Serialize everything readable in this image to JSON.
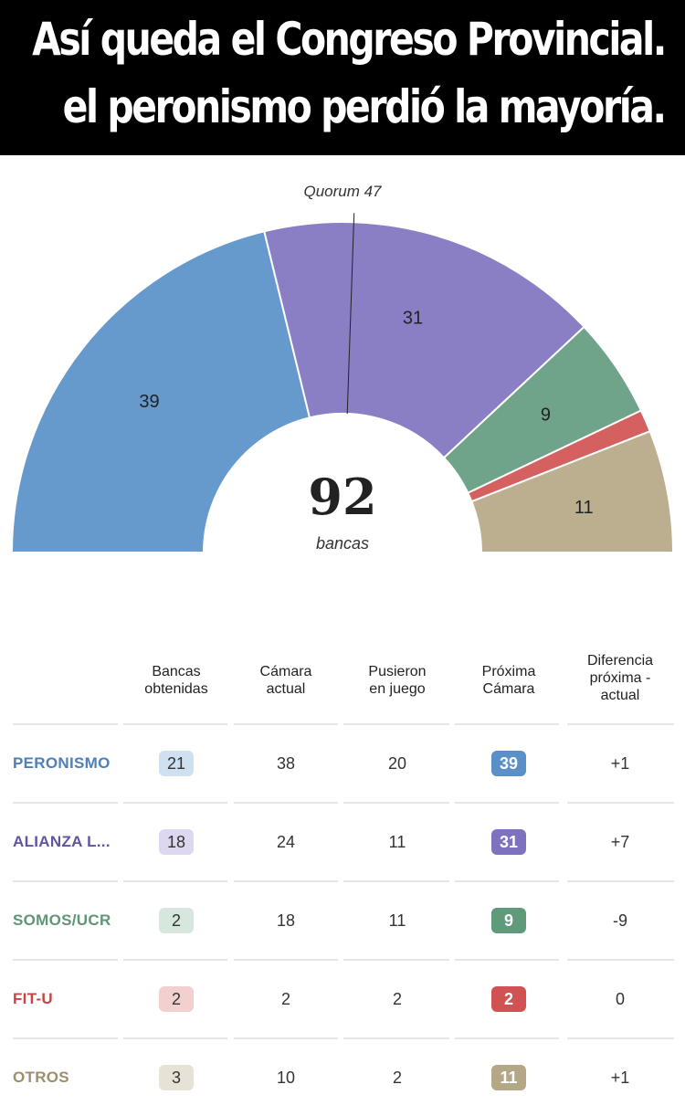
{
  "banner": {
    "line1": "Así queda el Congreso Provincial.",
    "line2": "el peronismo perdió la mayoría."
  },
  "chart_data": {
    "type": "parliament-semicircle",
    "total": 92,
    "total_label": "bancas",
    "quorum_label": "Quorum 47",
    "quorum": 47,
    "segments": [
      {
        "party": "PERONISMO",
        "value": 39,
        "label": "39",
        "color": "#6699cc"
      },
      {
        "party": "ALIANZA L...",
        "value": 31,
        "label": "31",
        "color": "#8a7fc4"
      },
      {
        "party": "SOMOS/UCR",
        "value": 9,
        "label": "9",
        "color": "#6fa38a"
      },
      {
        "party": "FIT-U",
        "value": 2,
        "label": "",
        "color": "#d46060"
      },
      {
        "party": "OTROS",
        "value": 11,
        "label": "11",
        "color": "#bcaf8f"
      }
    ]
  },
  "table": {
    "headers": [
      "Bancas\nobtenidas",
      "Cámara\nactual",
      "Pusieron\nen juego",
      "Próxima\nCámara",
      "Diferencia\npróxima -\nactual"
    ],
    "rows": [
      {
        "party": "PERONISMO",
        "color": "#4e7fb8",
        "light": "#cfe0f0",
        "dark": "#5b8fc8",
        "obtenidas": "21",
        "actual": "38",
        "juego": "20",
        "proxima": "39",
        "diferencia": "+1"
      },
      {
        "party": "ALIANZA L...",
        "color": "#5f55a0",
        "light": "#ddd8f0",
        "dark": "#7e72bf",
        "obtenidas": "18",
        "actual": "24",
        "juego": "11",
        "proxima": "31",
        "diferencia": "+7"
      },
      {
        "party": "SOMOS/UCR",
        "color": "#5e9677",
        "light": "#d6e7dd",
        "dark": "#5f9a7b",
        "obtenidas": "2",
        "actual": "18",
        "juego": "11",
        "proxima": "9",
        "diferencia": "-9"
      },
      {
        "party": "FIT-U",
        "color": "#c94545",
        "light": "#f2d0d0",
        "dark": "#d05252",
        "obtenidas": "2",
        "actual": "2",
        "juego": "2",
        "proxima": "2",
        "diferencia": "0"
      },
      {
        "party": "OTROS",
        "color": "#9c8f6c",
        "light": "#e6e2d6",
        "dark": "#b3a785",
        "obtenidas": "3",
        "actual": "10",
        "juego": "2",
        "proxima": "11",
        "diferencia": "+1"
      }
    ]
  }
}
